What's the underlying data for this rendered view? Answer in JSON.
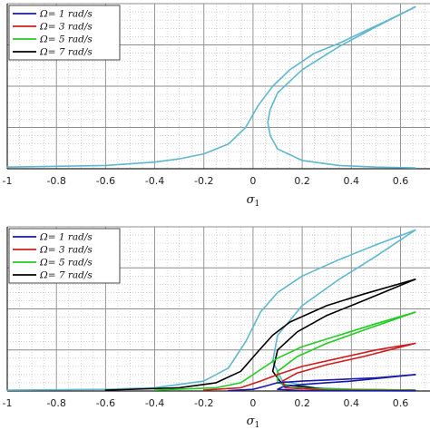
{
  "chart_data": [
    {
      "type": "line",
      "xlabel": "σ",
      "xlabel_sub": "1",
      "xlim": [
        -1,
        0.72
      ],
      "xticks": [
        -1,
        -0.8,
        -0.6,
        -0.4,
        -0.2,
        0,
        0.2,
        0.4,
        0.6
      ],
      "xtick_labels": [
        "-1",
        "-0.8",
        "-0.6",
        "-0.4",
        "-0.2",
        "0",
        "0.2",
        "0.4",
        "0.6"
      ],
      "ylim": [
        0,
        1
      ],
      "grid": true,
      "legend_position": "top-left",
      "legend": [
        {
          "label": "Ω= 1 rad/s",
          "color": "#1a1aa6"
        },
        {
          "label": "Ω= 3 rad/s",
          "color": "#d01c1c"
        },
        {
          "label": "Ω= 5 rad/s",
          "color": "#22cc22"
        },
        {
          "label": "Ω= 7 rad/s",
          "color": "#000000"
        }
      ],
      "series": [
        {
          "color": "#5fb7cf",
          "points": [
            [
              -1,
              0.01
            ],
            [
              -0.8,
              0.015
            ],
            [
              -0.6,
              0.02
            ],
            [
              -0.4,
              0.04
            ],
            [
              -0.3,
              0.06
            ],
            [
              -0.2,
              0.09
            ],
            [
              -0.1,
              0.15
            ],
            [
              -0.03,
              0.25
            ],
            [
              0.02,
              0.38
            ],
            [
              0.08,
              0.5
            ],
            [
              0.15,
              0.6
            ],
            [
              0.25,
              0.7
            ],
            [
              0.35,
              0.76
            ],
            [
              0.45,
              0.83
            ],
            [
              0.55,
              0.9
            ],
            [
              0.66,
              0.98
            ]
          ]
        },
        {
          "color": "#5fb7cf",
          "points": [
            [
              0.66,
              0.98
            ],
            [
              0.5,
              0.86
            ],
            [
              0.35,
              0.74
            ],
            [
              0.2,
              0.6
            ],
            [
              0.1,
              0.46
            ],
            [
              0.07,
              0.36
            ],
            [
              0.06,
              0.28
            ],
            [
              0.07,
              0.2
            ],
            [
              0.1,
              0.12
            ],
            [
              0.2,
              0.05
            ],
            [
              0.35,
              0.02
            ],
            [
              0.5,
              0.01
            ],
            [
              0.66,
              0.005
            ]
          ]
        }
      ]
    },
    {
      "type": "line",
      "xlabel": "σ",
      "xlabel_sub": "1",
      "xlim": [
        -1,
        0.72
      ],
      "xticks": [
        -1,
        -0.8,
        -0.6,
        -0.4,
        -0.2,
        0,
        0.2,
        0.4,
        0.6
      ],
      "xtick_labels": [
        "-1",
        "-0.8",
        "-0.6",
        "-0.4",
        "-0.2",
        "0",
        "0.2",
        "0.4",
        "0.6"
      ],
      "ylim": [
        0,
        1
      ],
      "grid": true,
      "legend_position": "top-left",
      "legend": [
        {
          "label": "Ω= 1 rad/s",
          "color": "#1a1aa6"
        },
        {
          "label": "Ω= 3 rad/s",
          "color": "#d01c1c"
        },
        {
          "label": "Ω= 5 rad/s",
          "color": "#22cc22"
        },
        {
          "label": "Ω= 7 rad/s",
          "color": "#000000"
        }
      ],
      "series": [
        {
          "color": "#5fb7cf",
          "points": [
            [
              -1,
              0.005
            ],
            [
              -0.6,
              0.01
            ],
            [
              -0.4,
              0.02
            ],
            [
              -0.2,
              0.06
            ],
            [
              -0.1,
              0.14
            ],
            [
              -0.03,
              0.3
            ],
            [
              0.03,
              0.48
            ],
            [
              0.1,
              0.6
            ],
            [
              0.2,
              0.7
            ],
            [
              0.35,
              0.8
            ],
            [
              0.5,
              0.89
            ],
            [
              0.66,
              0.98
            ]
          ]
        },
        {
          "color": "#5fb7cf",
          "points": [
            [
              0.66,
              0.98
            ],
            [
              0.5,
              0.82
            ],
            [
              0.35,
              0.68
            ],
            [
              0.2,
              0.52
            ],
            [
              0.1,
              0.34
            ],
            [
              0.08,
              0.18
            ],
            [
              0.12,
              0.06
            ],
            [
              0.25,
              0.02
            ],
            [
              0.4,
              0.01
            ],
            [
              0.66,
              0.005
            ]
          ]
        },
        {
          "color": "#000000",
          "points": [
            [
              -0.6,
              0.005
            ],
            [
              -0.3,
              0.02
            ],
            [
              -0.15,
              0.05
            ],
            [
              -0.05,
              0.12
            ],
            [
              0.02,
              0.24
            ],
            [
              0.08,
              0.34
            ],
            [
              0.15,
              0.42
            ],
            [
              0.3,
              0.52
            ],
            [
              0.45,
              0.59
            ],
            [
              0.66,
              0.68
            ]
          ]
        },
        {
          "color": "#000000",
          "points": [
            [
              0.66,
              0.68
            ],
            [
              0.45,
              0.55
            ],
            [
              0.3,
              0.46
            ],
            [
              0.18,
              0.36
            ],
            [
              0.1,
              0.25
            ],
            [
              0.08,
              0.12
            ],
            [
              0.12,
              0.04
            ],
            [
              0.3,
              0.01
            ],
            [
              0.66,
              0.005
            ]
          ]
        },
        {
          "color": "#22cc22",
          "points": [
            [
              -0.4,
              0.005
            ],
            [
              -0.15,
              0.02
            ],
            [
              -0.05,
              0.05
            ],
            [
              0.03,
              0.13
            ],
            [
              0.1,
              0.2
            ],
            [
              0.2,
              0.27
            ],
            [
              0.35,
              0.34
            ],
            [
              0.5,
              0.41
            ],
            [
              0.66,
              0.48
            ]
          ]
        },
        {
          "color": "#22cc22",
          "points": [
            [
              0.66,
              0.48
            ],
            [
              0.45,
              0.37
            ],
            [
              0.3,
              0.29
            ],
            [
              0.18,
              0.21
            ],
            [
              0.1,
              0.12
            ],
            [
              0.1,
              0.05
            ],
            [
              0.2,
              0.015
            ],
            [
              0.66,
              0.005
            ]
          ]
        },
        {
          "color": "#d01c1c",
          "points": [
            [
              -0.2,
              0.005
            ],
            [
              -0.05,
              0.02
            ],
            [
              0.03,
              0.06
            ],
            [
              0.1,
              0.1
            ],
            [
              0.2,
              0.15
            ],
            [
              0.35,
              0.2
            ],
            [
              0.5,
              0.25
            ],
            [
              0.66,
              0.29
            ]
          ]
        },
        {
          "color": "#d01c1c",
          "points": [
            [
              0.66,
              0.29
            ],
            [
              0.45,
              0.21
            ],
            [
              0.3,
              0.16
            ],
            [
              0.18,
              0.11
            ],
            [
              0.12,
              0.06
            ],
            [
              0.13,
              0.02
            ],
            [
              0.3,
              0.005
            ],
            [
              0.66,
              0.002
            ]
          ]
        },
        {
          "color": "#1a1aa6",
          "points": [
            [
              -0.1,
              0.002
            ],
            [
              0.0,
              0.01
            ],
            [
              0.05,
              0.03
            ],
            [
              0.1,
              0.05
            ],
            [
              0.2,
              0.06
            ],
            [
              0.35,
              0.07
            ],
            [
              0.5,
              0.08
            ],
            [
              0.66,
              0.1
            ]
          ]
        },
        {
          "color": "#1a1aa6",
          "points": [
            [
              0.66,
              0.1
            ],
            [
              0.4,
              0.06
            ],
            [
              0.2,
              0.04
            ],
            [
              0.12,
              0.025
            ],
            [
              0.1,
              0.01
            ],
            [
              0.2,
              0.003
            ],
            [
              0.66,
              0.001
            ]
          ]
        }
      ]
    }
  ]
}
